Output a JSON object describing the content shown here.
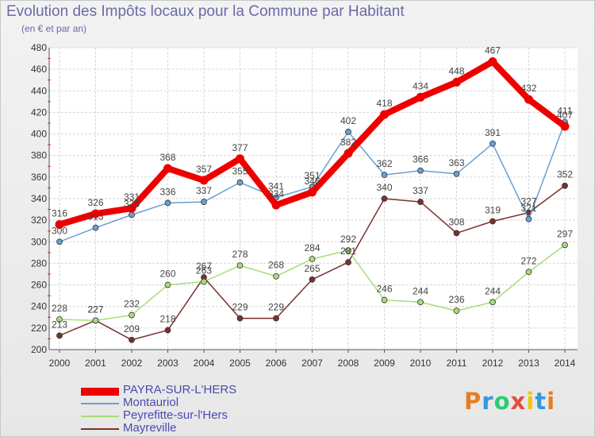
{
  "title": "Evolution des Impôts locaux pour la Commune par Habitant",
  "subtitle": "(en € et par an)",
  "logo_text": "Proxiti",
  "chart_data": {
    "type": "line",
    "title": "Evolution des Impôts locaux pour la Commune par Habitant",
    "subtitle": "(en € et par an)",
    "xlabel": "",
    "ylabel": "",
    "categories": [
      "2000",
      "2001",
      "2002",
      "2003",
      "2004",
      "2005",
      "2006",
      "2007",
      "2008",
      "2009",
      "2010",
      "2011",
      "2012",
      "2013",
      "2014"
    ],
    "ylim": [
      200,
      480
    ],
    "yticks": [
      200,
      220,
      240,
      260,
      280,
      300,
      320,
      340,
      360,
      380,
      400,
      420,
      440,
      460,
      480
    ],
    "grid": true,
    "legend_position": "bottom-left",
    "series": [
      {
        "name": "PAYRA-SUR-L'HERS",
        "color": "#ee0000",
        "values": [
          316,
          326,
          331,
          368,
          357,
          377,
          334,
          346,
          382,
          418,
          434,
          448,
          467,
          432,
          407
        ]
      },
      {
        "name": "Montauriol",
        "color": "#6a9fd0",
        "values": [
          300,
          313,
          325,
          336,
          337,
          355,
          341,
          351,
          402,
          362,
          366,
          363,
          391,
          321,
          411
        ]
      },
      {
        "name": "Peyrefitte-sur-l'Hers",
        "color": "#a8dc7a",
        "values": [
          228,
          227,
          232,
          260,
          263,
          278,
          268,
          284,
          292,
          246,
          244,
          236,
          244,
          272,
          297
        ]
      },
      {
        "name": "Mayreville",
        "color": "#7a3030",
        "values": [
          213,
          227,
          209,
          218,
          267,
          229,
          229,
          265,
          281,
          340,
          337,
          308,
          319,
          327,
          352
        ]
      }
    ]
  }
}
